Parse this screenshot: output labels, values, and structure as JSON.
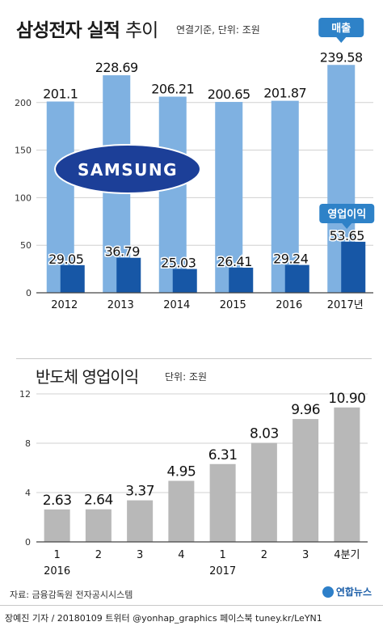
{
  "chart1": {
    "title_bold": "삼성전자 실적",
    "title_light": "추이",
    "unit": "연결기준, 단위: 조원",
    "logo_text": "SAMSUNG",
    "sales_badge": "매출",
    "profit_badge": "영업이익",
    "colors": {
      "sales": "#7fb1e1",
      "profit": "#1757a6",
      "badge": "#2e82c8"
    }
  },
  "chart2": {
    "title": "반도체 영업이익",
    "unit": "단위: 조원",
    "colors": {
      "bar": "#b8b8b8"
    }
  },
  "source": "자료: 금융감독원 전자공시시스템",
  "footer": "장예진 기자 / 20180109 트위터 @yonhap_graphics  페이스북 tuney.kr/LeYN1",
  "agency": "연합뉴스",
  "chart_data": [
    {
      "type": "bar",
      "categories": [
        "2012",
        "2013",
        "2014",
        "2015",
        "2016",
        "2017년"
      ],
      "series": [
        {
          "name": "매출",
          "values": [
            201.1,
            228.69,
            206.21,
            200.65,
            201.87,
            239.58
          ],
          "labels": [
            "201.1",
            "228.69",
            "206.21",
            "200.65",
            "201.87",
            "239.58"
          ]
        },
        {
          "name": "영업이익",
          "values": [
            29.05,
            36.79,
            25.03,
            26.41,
            29.24,
            53.65
          ],
          "labels": [
            "29.05",
            "36.79",
            "25.03",
            "26.41",
            "29.24",
            "53.65"
          ]
        }
      ],
      "yticks": [
        "0",
        "50",
        "100",
        "150",
        "200"
      ],
      "ylim": [
        0,
        250
      ],
      "grid": true
    },
    {
      "type": "bar",
      "categories": [
        "1",
        "2",
        "3",
        "4",
        "1",
        "2",
        "3",
        "4분기"
      ],
      "year_labels": [
        "2016",
        "2017"
      ],
      "values": [
        2.63,
        2.64,
        3.37,
        4.95,
        6.31,
        8.03,
        9.96,
        10.9
      ],
      "labels": [
        "2.63",
        "2.64",
        "3.37",
        "4.95",
        "6.31",
        "8.03",
        "9.96",
        "10.90"
      ],
      "yticks": [
        "0",
        "4",
        "8",
        "12"
      ],
      "ylim": [
        0,
        12
      ],
      "grid": true
    }
  ]
}
